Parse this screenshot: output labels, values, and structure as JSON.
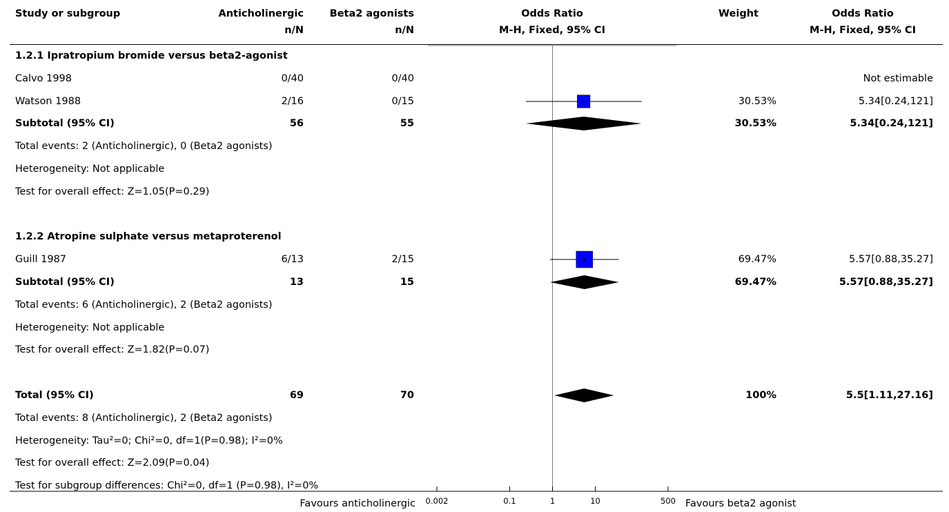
{
  "header": {
    "study": "Study or subgroup",
    "exp": "Anticholinergic",
    "exp_sub": "n/N",
    "ctl": "Beta2 agonists",
    "ctl_sub": "n/N",
    "or": "Odds Ratio",
    "or_sub": "M-H, Fixed, 95% CI",
    "weight": "Weight",
    "or2": "Odds Ratio",
    "or2_sub": "M-H, Fixed, 95% CI"
  },
  "rows": [
    {
      "type": "heading",
      "label": "1.2.1 Ipratropium bromide versus beta2-agonist"
    },
    {
      "type": "study",
      "label": "Calvo 1998",
      "exp": "0/40",
      "ctl": "0/40",
      "weight": "",
      "ci": "Not estimable"
    },
    {
      "type": "study",
      "label": "Watson 1988",
      "exp": "2/16",
      "ctl": "0/15",
      "weight": "30.53%",
      "ci": "5.34[0.24,121]"
    },
    {
      "type": "subtotal",
      "label": "Subtotal (95% CI)",
      "exp": "56",
      "ctl": "55",
      "weight": "30.53%",
      "ci": "5.34[0.24,121]"
    },
    {
      "type": "note",
      "label": "Total events: 2 (Anticholinergic), 0 (Beta2 agonists)"
    },
    {
      "type": "note",
      "label": "Heterogeneity: Not applicable"
    },
    {
      "type": "note",
      "label": "Test for overall effect: Z=1.05(P=0.29)"
    },
    {
      "type": "blank",
      "label": ""
    },
    {
      "type": "heading",
      "label": "1.2.2 Atropine sulphate versus metaproterenol"
    },
    {
      "type": "study",
      "label": "Guill 1987",
      "exp": "6/13",
      "ctl": "2/15",
      "weight": "69.47%",
      "ci": "5.57[0.88,35.27]"
    },
    {
      "type": "subtotal",
      "label": "Subtotal (95% CI)",
      "exp": "13",
      "ctl": "15",
      "weight": "69.47%",
      "ci": "5.57[0.88,35.27]"
    },
    {
      "type": "note",
      "label": "Total events: 6 (Anticholinergic), 2 (Beta2 agonists)"
    },
    {
      "type": "note",
      "label": "Heterogeneity: Not applicable"
    },
    {
      "type": "note",
      "label": "Test for overall effect: Z=1.82(P=0.07)"
    },
    {
      "type": "blank",
      "label": ""
    },
    {
      "type": "total",
      "label": "Total (95% CI)",
      "exp": "69",
      "ctl": "70",
      "weight": "100%",
      "ci": "5.5[1.11,27.16]"
    },
    {
      "type": "note",
      "label": "Total events: 8 (Anticholinergic), 2 (Beta2 agonists)"
    },
    {
      "type": "note",
      "label": "Heterogeneity: Tau²=0; Chi²=0, df=1(P=0.98); I²=0%"
    },
    {
      "type": "note",
      "label": "Test for overall effect: Z=2.09(P=0.04)"
    },
    {
      "type": "note",
      "label": "Test for subgroup differences: Chi²=0, df=1 (P=0.98), I²=0%"
    }
  ],
  "footer": {
    "favours_left": "Favours anticholinergic",
    "favours_right": "Favours beta2 agonist"
  },
  "chart_data": {
    "type": "forest",
    "scale": "log",
    "x_range": [
      0.002,
      500
    ],
    "ticks": [
      0.002,
      0.1,
      1,
      10,
      500
    ],
    "tick_labels": [
      "0.002",
      "0.1",
      "1",
      "10",
      "500"
    ],
    "null_line": 1,
    "studies": [
      {
        "name": "Watson 1988",
        "or": 5.34,
        "lo": 0.24,
        "hi": 121,
        "weight": 30.53
      },
      {
        "name": "Guill 1987",
        "or": 5.57,
        "lo": 0.88,
        "hi": 35.27,
        "weight": 69.47
      }
    ],
    "diamonds": [
      {
        "name": "Subtotal 1.2.1",
        "or": 5.34,
        "lo": 0.24,
        "hi": 121
      },
      {
        "name": "Subtotal 1.2.2",
        "or": 5.57,
        "lo": 0.88,
        "hi": 35.27
      },
      {
        "name": "Total",
        "or": 5.5,
        "lo": 1.11,
        "hi": 27.16
      }
    ],
    "colors": {
      "box": "#0000ff",
      "diamond": "#000000",
      "line": "#000000"
    }
  }
}
